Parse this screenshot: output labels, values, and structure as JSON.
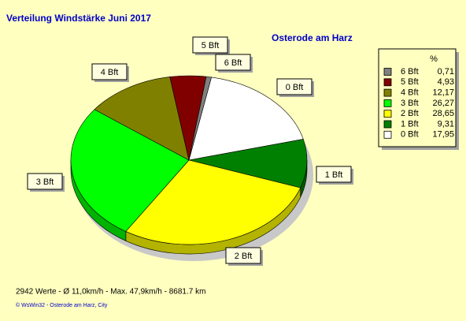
{
  "chart_data": {
    "type": "pie",
    "title": "Verteilung Windstärke  Juni 2017",
    "subtitle": "Osterode am Harz",
    "categories": [
      "0 Bft",
      "1 Bft",
      "2 Bft",
      "3 Bft",
      "4 Bft",
      "5 Bft",
      "6 Bft"
    ],
    "values": [
      17.95,
      9.31,
      28.65,
      26.27,
      12.17,
      4.93,
      0.71
    ],
    "value_labels": [
      "17,95",
      "9,31",
      "28,65",
      "26,27",
      "12,17",
      "4,93",
      "0,71"
    ],
    "colors": [
      "#ffffff",
      "#008000",
      "#ffff00",
      "#00ff00",
      "#808000",
      "#800000",
      "#808080"
    ],
    "legend_header": "%",
    "legend": "top-right",
    "footer": "2942 Werte   -   Ø 11,0km/h  -  Max. 47,9km/h   -   8681.7 km",
    "credit": "© WsWin32  -  Osterode am Harz, City"
  }
}
